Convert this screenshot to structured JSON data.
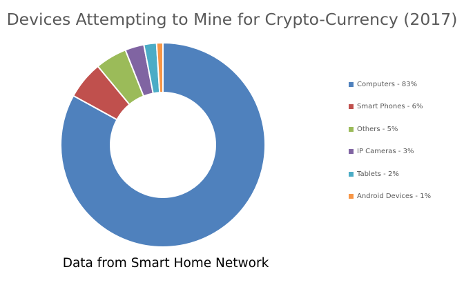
{
  "chart_data": {
    "type": "pie",
    "title": "Devices Attempting to Mine for Crypto-Currency (2017)",
    "subtitle": "Data from Smart Home Network",
    "style": "donut",
    "legend_position": "right",
    "start_angle_deg": 0,
    "direction": "clockwise",
    "slices": [
      {
        "name": "Computers",
        "value": 83,
        "label": "Computers - 83%",
        "color": "#4f81bd"
      },
      {
        "name": "Smart Phones",
        "value": 6,
        "label": "Smart Phones - 6%",
        "color": "#c0504d"
      },
      {
        "name": "Others",
        "value": 5,
        "label": "Others - 5%",
        "color": "#9bbb59"
      },
      {
        "name": "IP Cameras",
        "value": 3,
        "label": "IP Cameras - 3%",
        "color": "#8064a2"
      },
      {
        "name": "Tablets",
        "value": 2,
        "label": "Tablets - 2%",
        "color": "#4bacc6"
      },
      {
        "name": "Android Devices",
        "value": 1,
        "label": "Android Devices - 1%",
        "color": "#f79646"
      }
    ]
  }
}
